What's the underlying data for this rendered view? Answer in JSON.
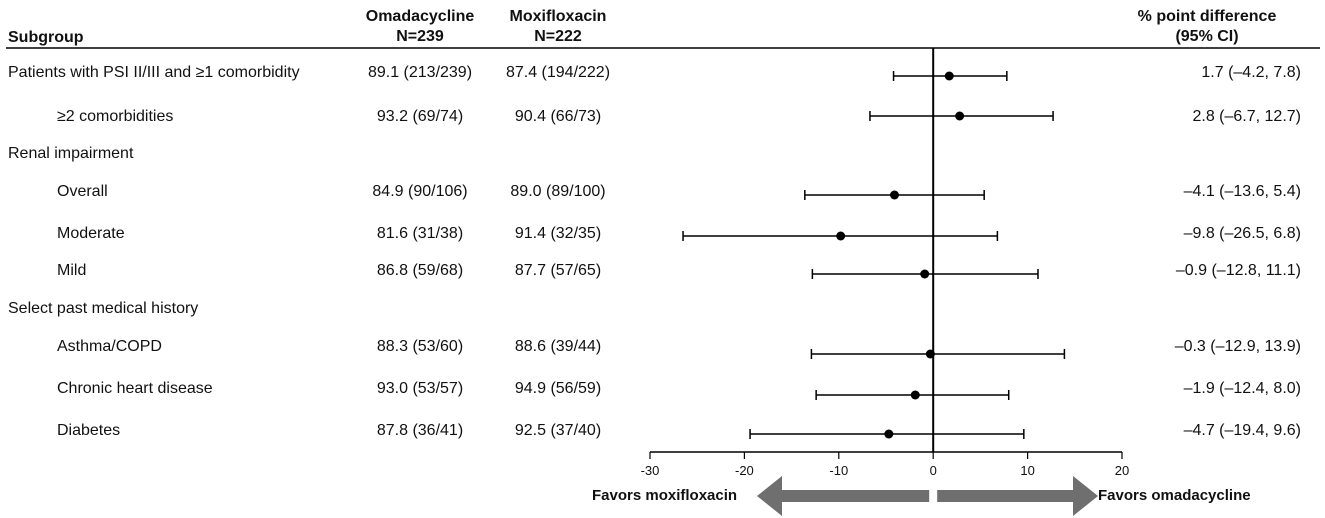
{
  "headers": {
    "subgroup": "Subgroup",
    "omada_line1": "Omadacycline",
    "omada_line2": "N=239",
    "moxi_line1": "Moxifloxacin",
    "moxi_line2": "N=222",
    "diff_line1": "% point difference",
    "diff_line2": "(95% CI)"
  },
  "rows": [
    {
      "label": "Patients with PSI II/III and ≥1 comorbidity",
      "omada": "89.1 (213/239)",
      "moxi": "87.4 (194/222)",
      "diff_text": "1.7 (–4.2, 7.8)"
    },
    {
      "label": "≥2 comorbidities",
      "omada": "93.2 (69/74)",
      "moxi": "90.4 (66/73)",
      "diff_text": "2.8 (–6.7, 12.7)"
    },
    {
      "label": "Renal impairment"
    },
    {
      "label": "Overall",
      "omada": "84.9 (90/106)",
      "moxi": "89.0 (89/100)",
      "diff_text": "–4.1 (–13.6, 5.4)"
    },
    {
      "label": "Moderate",
      "omada": "81.6 (31/38)",
      "moxi": "91.4 (32/35)",
      "diff_text": "–9.8 (–26.5, 6.8)"
    },
    {
      "label": "Mild",
      "omada": "86.8 (59/68)",
      "moxi": "87.7 (57/65)",
      "diff_text": "–0.9 (–12.8, 11.1)"
    },
    {
      "label": "Select past medical history"
    },
    {
      "label": "Asthma/COPD",
      "omada": "88.3 (53/60)",
      "moxi": "88.6 (39/44)",
      "diff_text": "–0.3 (–12.9, 13.9)"
    },
    {
      "label": "Chronic heart disease",
      "omada": "93.0 (53/57)",
      "moxi": "94.9 (56/59)",
      "diff_text": "–1.9 (–12.4, 8.0)"
    },
    {
      "label": "Diabetes",
      "omada": "87.8 (36/41)",
      "moxi": "92.5 (37/40)",
      "diff_text": "–4.7 (–19.4, 9.6)"
    }
  ],
  "chart_data": {
    "type": "forest",
    "xlim": [
      -30,
      20
    ],
    "xticks": [
      -30,
      -20,
      -10,
      0,
      10,
      20
    ],
    "reference_line": 0,
    "series": [
      {
        "label": "Patients with PSI II/III and ≥1 comorbidity",
        "estimate": 1.7,
        "ci_low": -4.2,
        "ci_high": 7.8
      },
      {
        "label": "≥2 comorbidities",
        "estimate": 2.8,
        "ci_low": -6.7,
        "ci_high": 12.7
      },
      {
        "label": "Overall",
        "estimate": -4.1,
        "ci_low": -13.6,
        "ci_high": 5.4
      },
      {
        "label": "Moderate",
        "estimate": -9.8,
        "ci_low": -26.5,
        "ci_high": 6.8
      },
      {
        "label": "Mild",
        "estimate": -0.9,
        "ci_low": -12.8,
        "ci_high": 11.1
      },
      {
        "label": "Asthma/COPD",
        "estimate": -0.3,
        "ci_low": -12.9,
        "ci_high": 13.9
      },
      {
        "label": "Chronic heart disease",
        "estimate": -1.9,
        "ci_low": -12.4,
        "ci_high": 8.0
      },
      {
        "label": "Diabetes",
        "estimate": -4.7,
        "ci_low": -19.4,
        "ci_high": 9.6
      }
    ],
    "favors_left": "Favors moxifloxacin",
    "favors_right": "Favors omadacycline",
    "colors": {
      "marker": "#000000",
      "arrow": "#6f6f6f"
    }
  }
}
